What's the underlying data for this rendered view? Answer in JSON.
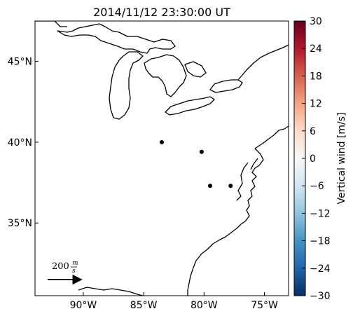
{
  "title": "2014/11/12 23:30:00 UT",
  "map": {
    "lon_range": [
      -94,
      -73
    ],
    "lat_range": [
      30.5,
      47.5
    ],
    "lat_ticks": [
      {
        "value": 45,
        "label": "45°N"
      },
      {
        "value": 40,
        "label": "40°N"
      },
      {
        "value": 35,
        "label": "35°N"
      }
    ],
    "lon_ticks": [
      {
        "value": -90,
        "label": "90°W"
      },
      {
        "value": -85,
        "label": "85°W"
      },
      {
        "value": -80,
        "label": "80°W"
      },
      {
        "value": -75,
        "label": "75°W"
      }
    ],
    "stations": [
      {
        "lon": -83.5,
        "lat": 40.0
      },
      {
        "lon": -80.2,
        "lat": 39.4
      },
      {
        "lon": -79.5,
        "lat": 37.3
      },
      {
        "lon": -77.8,
        "lat": 37.3
      }
    ],
    "station_color": "#000000",
    "coast_color": "#000000"
  },
  "reference_arrow": {
    "label_value": "200",
    "label_numerator": "m",
    "label_denominator": "s"
  },
  "colorbar": {
    "label": "Vertical wind [m/s]",
    "colormap": "RdBu_r",
    "range": [
      -30,
      30
    ],
    "ticks": [
      "30",
      "24",
      "18",
      "12",
      "6",
      "0",
      "−6",
      "−12",
      "−18",
      "−24",
      "−30"
    ],
    "colors": [
      "#67001f",
      "#b2182b",
      "#d6604d",
      "#f4a582",
      "#fddbc7",
      "#f7f7f7",
      "#d1e5f0",
      "#92c5de",
      "#4393c3",
      "#2166ac",
      "#053061"
    ]
  }
}
